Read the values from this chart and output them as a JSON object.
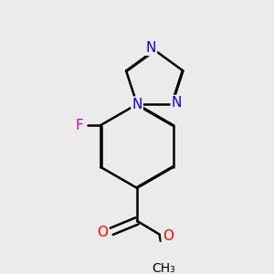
{
  "background_color": "#ebebeb",
  "bond_color": "#000000",
  "bond_width": 1.8,
  "atom_colors": {
    "N": "#0000ff",
    "O": "#ff0000",
    "F": "#cc00cc",
    "C": "#000000"
  },
  "font_size": 11,
  "font_size_atom": 11
}
